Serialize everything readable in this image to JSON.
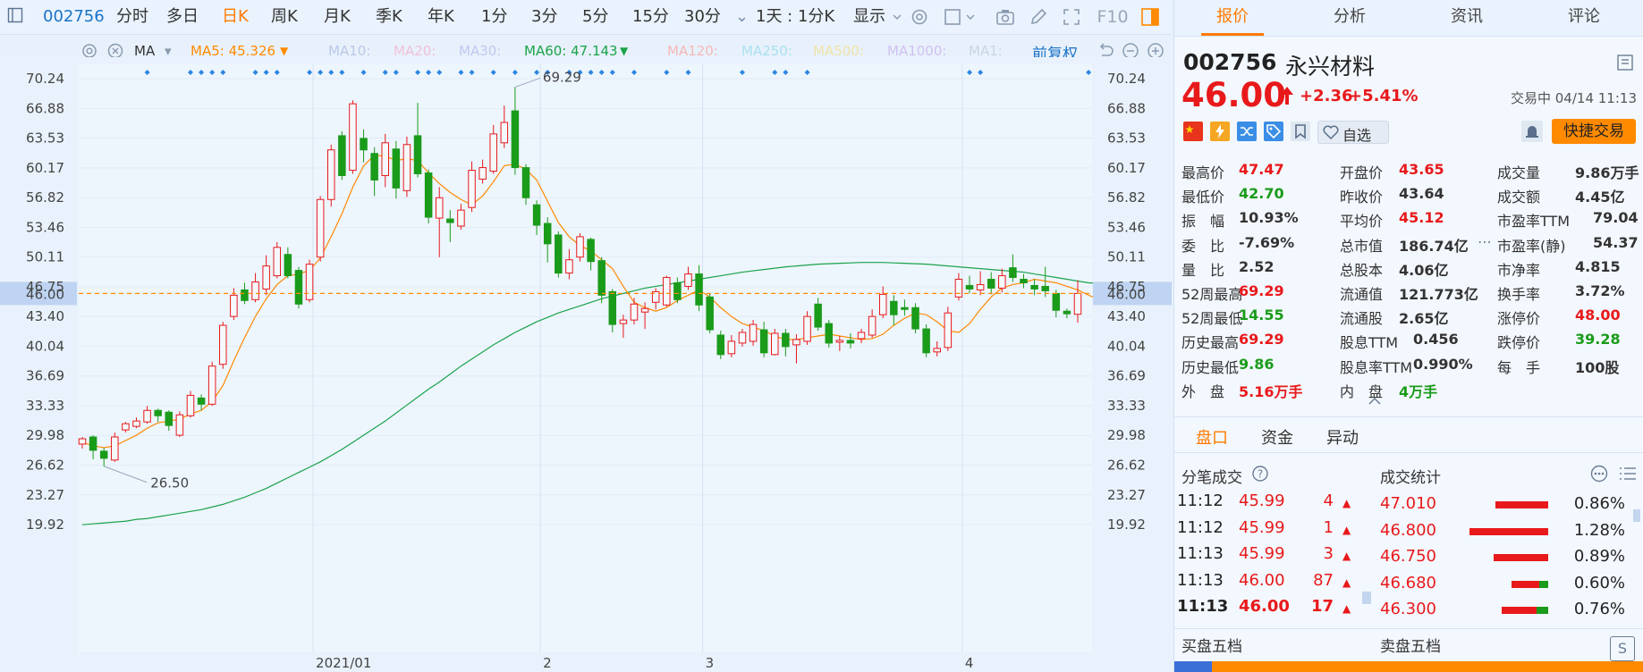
{
  "toolbar": {
    "code": "002756",
    "periods": [
      "分时",
      "多日",
      "日K",
      "周K",
      "月K",
      "季K",
      "年K",
      "1分",
      "3分",
      "5分",
      "15分",
      "30分"
    ],
    "active_period": "日K",
    "more_chevron": "⌄",
    "interval": "1天 : 1分K",
    "display": "显示"
  },
  "ma_row": {
    "type": "MA",
    "ma5": "MA5: 45.326",
    "ma10": "MA10:",
    "ma20": "MA20:",
    "ma30": "MA30:",
    "ma60": "MA60: 47.143",
    "ma120": "MA120:",
    "ma250": "MA250:",
    "ma500": "MA500:",
    "ma1000": "MA1000:",
    "ma1": "MA1:",
    "adjust": "前复权",
    "colors": {
      "ma5": "#ff8a00",
      "ma10": "#b9c8e8",
      "ma20": "#f0c0d8",
      "ma30": "#c0c8f0",
      "ma60": "#1aa34a",
      "ma120": "#f5b8b8",
      "ma250": "#a8e0f0",
      "ma500": "#f0e2a8",
      "ma1000": "#d0c0f0",
      "ma1": "#c8d4e4"
    }
  },
  "chart_data": {
    "type": "candlestick",
    "y_ticks": [
      "70.24",
      "66.88",
      "63.53",
      "60.17",
      "56.82",
      "53.46",
      "50.11",
      "46.75",
      "43.40",
      "40.04",
      "36.69",
      "33.33",
      "29.98",
      "26.62",
      "23.27",
      "19.92"
    ],
    "ylim": [
      19.92,
      70.24
    ],
    "x_labels": [
      "2021/01",
      "2",
      "3",
      "4"
    ],
    "current_price_label": "46.00",
    "high_annotation": "69.29",
    "low_annotation": "26.50",
    "candles": [
      {
        "o": 29.0,
        "c": 29.6,
        "h": 29.8,
        "l": 28.5
      },
      {
        "o": 29.8,
        "c": 28.3,
        "h": 30.0,
        "l": 27.3
      },
      {
        "o": 28.2,
        "c": 27.4,
        "h": 28.6,
        "l": 26.5
      },
      {
        "o": 27.2,
        "c": 29.8,
        "h": 30.3,
        "l": 27.0
      },
      {
        "o": 30.6,
        "c": 31.3,
        "h": 31.5,
        "l": 30.3
      },
      {
        "o": 31.0,
        "c": 31.6,
        "h": 32.0,
        "l": 30.8
      },
      {
        "o": 31.5,
        "c": 32.8,
        "h": 33.3,
        "l": 31.3
      },
      {
        "o": 32.8,
        "c": 32.2,
        "h": 33.0,
        "l": 31.5
      },
      {
        "o": 32.6,
        "c": 31.1,
        "h": 32.8,
        "l": 30.5
      },
      {
        "o": 30.0,
        "c": 32.3,
        "h": 32.7,
        "l": 29.8
      },
      {
        "o": 32.2,
        "c": 34.5,
        "h": 35.0,
        "l": 32.0
      },
      {
        "o": 34.2,
        "c": 33.5,
        "h": 34.6,
        "l": 32.8
      },
      {
        "o": 33.5,
        "c": 37.8,
        "h": 38.3,
        "l": 33.3
      },
      {
        "o": 38.0,
        "c": 42.4,
        "h": 42.8,
        "l": 37.5
      },
      {
        "o": 43.4,
        "c": 45.8,
        "h": 46.6,
        "l": 43.0
      },
      {
        "o": 46.4,
        "c": 45.2,
        "h": 47.2,
        "l": 44.8
      },
      {
        "o": 45.3,
        "c": 47.3,
        "h": 48.3,
        "l": 45.0
      },
      {
        "o": 46.5,
        "c": 49.1,
        "h": 50.3,
        "l": 45.8
      },
      {
        "o": 48.0,
        "c": 51.2,
        "h": 51.8,
        "l": 47.7
      },
      {
        "o": 50.4,
        "c": 48.0,
        "h": 51.2,
        "l": 47.7
      },
      {
        "o": 48.6,
        "c": 44.8,
        "h": 49.0,
        "l": 44.3
      },
      {
        "o": 45.3,
        "c": 49.3,
        "h": 49.8,
        "l": 45.0
      },
      {
        "o": 50.1,
        "c": 56.6,
        "h": 57.0,
        "l": 49.6
      },
      {
        "o": 56.6,
        "c": 62.2,
        "h": 62.8,
        "l": 55.8
      },
      {
        "o": 63.8,
        "c": 59.3,
        "h": 64.3,
        "l": 58.8
      },
      {
        "o": 59.9,
        "c": 67.4,
        "h": 67.8,
        "l": 59.5
      },
      {
        "o": 63.5,
        "c": 62.2,
        "h": 64.5,
        "l": 60.8
      },
      {
        "o": 61.8,
        "c": 58.8,
        "h": 62.5,
        "l": 57.0
      },
      {
        "o": 59.3,
        "c": 63.0,
        "h": 64.0,
        "l": 58.0
      },
      {
        "o": 62.3,
        "c": 57.9,
        "h": 63.2,
        "l": 56.7
      },
      {
        "o": 57.6,
        "c": 62.8,
        "h": 63.7,
        "l": 56.9
      },
      {
        "o": 63.8,
        "c": 59.5,
        "h": 67.5,
        "l": 59.1
      },
      {
        "o": 59.6,
        "c": 54.6,
        "h": 60.0,
        "l": 53.9
      },
      {
        "o": 54.5,
        "c": 56.8,
        "h": 58.0,
        "l": 50.1
      },
      {
        "o": 54.4,
        "c": 54.0,
        "h": 55.4,
        "l": 51.8
      },
      {
        "o": 53.6,
        "c": 55.4,
        "h": 56.1,
        "l": 53.2
      },
      {
        "o": 55.7,
        "c": 59.9,
        "h": 60.9,
        "l": 55.2
      },
      {
        "o": 58.9,
        "c": 60.2,
        "h": 61.1,
        "l": 58.4
      },
      {
        "o": 59.8,
        "c": 64.0,
        "h": 65.0,
        "l": 59.5
      },
      {
        "o": 63.0,
        "c": 65.3,
        "h": 67.2,
        "l": 62.4
      },
      {
        "o": 66.6,
        "c": 60.2,
        "h": 69.29,
        "l": 59.4
      },
      {
        "o": 60.2,
        "c": 56.8,
        "h": 60.6,
        "l": 56.0
      },
      {
        "o": 56.0,
        "c": 53.7,
        "h": 56.5,
        "l": 52.6
      },
      {
        "o": 53.9,
        "c": 51.6,
        "h": 54.6,
        "l": 49.5
      },
      {
        "o": 52.6,
        "c": 48.3,
        "h": 53.0,
        "l": 47.8
      },
      {
        "o": 48.3,
        "c": 49.8,
        "h": 51.0,
        "l": 47.6
      },
      {
        "o": 50.1,
        "c": 52.4,
        "h": 52.8,
        "l": 49.6
      },
      {
        "o": 52.1,
        "c": 49.6,
        "h": 52.3,
        "l": 48.6
      },
      {
        "o": 49.7,
        "c": 45.8,
        "h": 50.1,
        "l": 44.9
      },
      {
        "o": 46.2,
        "c": 42.5,
        "h": 46.5,
        "l": 41.6
      },
      {
        "o": 42.6,
        "c": 43.0,
        "h": 43.6,
        "l": 41.0
      },
      {
        "o": 43.0,
        "c": 44.8,
        "h": 45.5,
        "l": 42.5
      },
      {
        "o": 43.9,
        "c": 44.3,
        "h": 45.0,
        "l": 42.0
      },
      {
        "o": 45.0,
        "c": 46.2,
        "h": 46.6,
        "l": 44.2
      },
      {
        "o": 44.7,
        "c": 47.8,
        "h": 48.0,
        "l": 44.5
      },
      {
        "o": 47.2,
        "c": 45.3,
        "h": 47.8,
        "l": 44.9
      },
      {
        "o": 46.8,
        "c": 48.2,
        "h": 49.0,
        "l": 46.4
      },
      {
        "o": 48.2,
        "c": 44.7,
        "h": 49.2,
        "l": 44.0
      },
      {
        "o": 45.6,
        "c": 41.9,
        "h": 46.0,
        "l": 41.5
      },
      {
        "o": 41.3,
        "c": 39.1,
        "h": 41.8,
        "l": 38.6
      },
      {
        "o": 39.2,
        "c": 40.6,
        "h": 41.3,
        "l": 38.8
      },
      {
        "o": 40.4,
        "c": 41.6,
        "h": 42.0,
        "l": 40.0
      },
      {
        "o": 40.6,
        "c": 42.5,
        "h": 43.0,
        "l": 40.1
      },
      {
        "o": 41.9,
        "c": 39.3,
        "h": 42.8,
        "l": 38.8
      },
      {
        "o": 39.1,
        "c": 41.5,
        "h": 42.0,
        "l": 39.0
      },
      {
        "o": 41.5,
        "c": 40.0,
        "h": 42.0,
        "l": 38.9
      },
      {
        "o": 40.2,
        "c": 40.8,
        "h": 41.4,
        "l": 38.1
      },
      {
        "o": 40.6,
        "c": 43.4,
        "h": 44.0,
        "l": 40.2
      },
      {
        "o": 44.8,
        "c": 42.2,
        "h": 45.5,
        "l": 41.8
      },
      {
        "o": 42.6,
        "c": 40.4,
        "h": 43.0,
        "l": 39.9
      },
      {
        "o": 40.5,
        "c": 40.7,
        "h": 41.2,
        "l": 39.5
      },
      {
        "o": 40.7,
        "c": 40.4,
        "h": 41.5,
        "l": 39.8
      },
      {
        "o": 40.9,
        "c": 41.6,
        "h": 42.0,
        "l": 40.4
      },
      {
        "o": 41.3,
        "c": 43.4,
        "h": 44.2,
        "l": 41.0
      },
      {
        "o": 43.6,
        "c": 45.9,
        "h": 46.8,
        "l": 43.2
      },
      {
        "o": 45.1,
        "c": 43.6,
        "h": 45.8,
        "l": 42.4
      },
      {
        "o": 44.4,
        "c": 44.2,
        "h": 45.3,
        "l": 43.5
      },
      {
        "o": 44.4,
        "c": 42.0,
        "h": 44.9,
        "l": 41.5
      },
      {
        "o": 42.0,
        "c": 39.3,
        "h": 42.5,
        "l": 38.8
      },
      {
        "o": 39.4,
        "c": 39.8,
        "h": 40.6,
        "l": 38.9
      },
      {
        "o": 39.9,
        "c": 43.8,
        "h": 44.5,
        "l": 39.5
      },
      {
        "o": 45.6,
        "c": 47.6,
        "h": 48.3,
        "l": 45.2
      },
      {
        "o": 46.9,
        "c": 46.5,
        "h": 48.0,
        "l": 46.0
      },
      {
        "o": 46.4,
        "c": 47.0,
        "h": 48.5,
        "l": 45.8
      },
      {
        "o": 47.6,
        "c": 46.6,
        "h": 48.4,
        "l": 45.9
      },
      {
        "o": 46.6,
        "c": 48.0,
        "h": 48.8,
        "l": 46.1
      },
      {
        "o": 48.9,
        "c": 47.8,
        "h": 50.4,
        "l": 47.3
      },
      {
        "o": 47.6,
        "c": 47.2,
        "h": 48.2,
        "l": 46.6
      },
      {
        "o": 46.9,
        "c": 46.5,
        "h": 47.6,
        "l": 45.8
      },
      {
        "o": 46.8,
        "c": 46.3,
        "h": 49.0,
        "l": 45.6
      },
      {
        "o": 46.0,
        "c": 44.1,
        "h": 46.4,
        "l": 43.3
      },
      {
        "o": 44.0,
        "c": 43.7,
        "h": 44.3,
        "l": 43.2
      },
      {
        "o": 43.65,
        "c": 46.0,
        "h": 47.47,
        "l": 42.7
      }
    ],
    "ma5_line": [
      29.2,
      28.8,
      28.6,
      28.8,
      29.4,
      30.0,
      30.8,
      31.4,
      31.6,
      31.8,
      32.4,
      32.8,
      33.8,
      35.6,
      38.4,
      41.0,
      43.4,
      45.4,
      47.0,
      48.0,
      48.2,
      48.6,
      50.0,
      52.4,
      55.0,
      58.0,
      60.4,
      61.6,
      61.5,
      61.0,
      61.2,
      61.0,
      59.6,
      58.4,
      57.4,
      56.6,
      56.0,
      57.0,
      58.6,
      60.4,
      60.6,
      60.0,
      58.8,
      56.4,
      54.0,
      52.4,
      51.4,
      50.8,
      49.8,
      48.8,
      46.8,
      45.0,
      44.4,
      44.0,
      44.4,
      45.2,
      45.8,
      46.4,
      45.6,
      44.4,
      43.4,
      42.6,
      42.2,
      41.8,
      41.2,
      40.8,
      40.8,
      41.0,
      41.2,
      41.4,
      41.2,
      41.0,
      40.8,
      40.9,
      41.4,
      42.4,
      43.2,
      43.8,
      43.6,
      42.8,
      41.8,
      41.6,
      42.6,
      44.2,
      45.6,
      46.6,
      47.0,
      47.2,
      47.6,
      47.4,
      47.2,
      46.8,
      46.4,
      45.8,
      45.3
    ],
    "ma60_line": [
      19.9,
      20.0,
      20.1,
      20.2,
      20.3,
      20.5,
      20.6,
      20.8,
      21.0,
      21.2,
      21.4,
      21.6,
      21.9,
      22.2,
      22.6,
      23.0,
      23.5,
      24.0,
      24.6,
      25.2,
      25.8,
      26.4,
      27.0,
      27.7,
      28.4,
      29.2,
      30.0,
      30.8,
      31.6,
      32.5,
      33.4,
      34.3,
      35.2,
      36.0,
      36.9,
      37.8,
      38.6,
      39.4,
      40.2,
      40.9,
      41.6,
      42.2,
      42.8,
      43.3,
      43.8,
      44.2,
      44.6,
      45.0,
      45.4,
      45.7,
      46.0,
      46.3,
      46.6,
      46.8,
      47.0,
      47.2,
      47.4,
      47.6,
      47.8,
      48.0,
      48.2,
      48.4,
      48.55,
      48.7,
      48.85,
      49.0,
      49.1,
      49.2,
      49.3,
      49.35,
      49.4,
      49.45,
      49.5,
      49.5,
      49.5,
      49.45,
      49.4,
      49.35,
      49.3,
      49.2,
      49.1,
      49.0,
      48.9,
      48.8,
      48.7,
      48.6,
      48.5,
      48.4,
      48.2,
      48.0,
      47.8,
      47.6,
      47.4,
      47.2,
      47.14
    ]
  },
  "panel": {
    "tabs": [
      "报价",
      "分析",
      "资讯",
      "评论"
    ],
    "code": "002756",
    "name": "永兴材料",
    "price": "46.00",
    "change": "+2.36",
    "change_pct": "+5.41%",
    "status": "交易中 04/14 11:13",
    "watch_label": "自选",
    "quick_trade": "快捷交易",
    "stats": [
      {
        "label": "最高价",
        "value": "47.47",
        "color": "red"
      },
      {
        "label": "开盘价",
        "value": "43.65",
        "color": "red"
      },
      {
        "label": "成交量",
        "value": "9.86万手",
        "color": "dark"
      },
      {
        "label": "最低价",
        "value": "42.70",
        "color": "green"
      },
      {
        "label": "昨收价",
        "value": "43.64",
        "color": "dark"
      },
      {
        "label": "成交额",
        "value": "4.45亿",
        "color": "dark"
      },
      {
        "label": "振　幅",
        "value": "10.93%",
        "color": "dark"
      },
      {
        "label": "平均价",
        "value": "45.12",
        "color": "red"
      },
      {
        "label": "市盈率TTM",
        "value": "79.04",
        "color": "dark"
      },
      {
        "label": "委　比",
        "value": "-7.69%",
        "color": "dark"
      },
      {
        "label": "总市值",
        "value": "186.74亿",
        "color": "dark"
      },
      {
        "label": "市盈率(静)",
        "value": "54.37",
        "color": "dark"
      },
      {
        "label": "量　比",
        "value": "2.52",
        "color": "dark"
      },
      {
        "label": "总股本",
        "value": "4.06亿",
        "color": "dark"
      },
      {
        "label": "市净率",
        "value": "4.815",
        "color": "dark"
      },
      {
        "label": "52周最高",
        "value": "69.29",
        "color": "red"
      },
      {
        "label": "流通值",
        "value": "121.773亿",
        "color": "dark"
      },
      {
        "label": "换手率",
        "value": "3.72%",
        "color": "dark"
      },
      {
        "label": "52周最低",
        "value": "14.55",
        "color": "green"
      },
      {
        "label": "流通股",
        "value": "2.65亿",
        "color": "dark"
      },
      {
        "label": "涨停价",
        "value": "48.00",
        "color": "red"
      },
      {
        "label": "历史最高",
        "value": "69.29",
        "color": "red"
      },
      {
        "label": "股息TTM",
        "value": "0.456",
        "color": "dark"
      },
      {
        "label": "跌停价",
        "value": "39.28",
        "color": "green"
      },
      {
        "label": "历史最低",
        "value": "9.86",
        "color": "green"
      },
      {
        "label": "股息率TTM",
        "value": "0.990%",
        "color": "dark"
      },
      {
        "label": "每　手",
        "value": "100股",
        "color": "dark"
      },
      {
        "label": "外　盘",
        "value": "5.16万手",
        "color": "red"
      },
      {
        "label": "内　盘",
        "value": "4万手",
        "color": "green"
      }
    ],
    "subtabs": [
      "盘口",
      "资金",
      "异动"
    ],
    "ticks_title": "分笔成交",
    "stats_title": "成交统计",
    "ticks": [
      {
        "time": "11:12",
        "price": "45.99",
        "vol": "4"
      },
      {
        "time": "11:12",
        "price": "45.99",
        "vol": "1"
      },
      {
        "time": "11:13",
        "price": "45.99",
        "vol": "3"
      },
      {
        "time": "11:13",
        "price": "46.00",
        "vol": "87"
      },
      {
        "time": "11:13",
        "price": "46.00",
        "vol": "17"
      }
    ],
    "price_stats": [
      {
        "price": "47.010",
        "pct": "0.86%",
        "share": 0.86
      },
      {
        "price": "46.800",
        "pct": "1.28%",
        "share": 1.28
      },
      {
        "price": "46.750",
        "pct": "0.89%",
        "share": 0.89
      },
      {
        "price": "46.680",
        "pct": "0.60%",
        "share": 0.6
      },
      {
        "price": "46.300",
        "pct": "0.76%",
        "share": 0.76
      }
    ],
    "bid_title": "买盘五档",
    "ask_title": "卖盘五档"
  }
}
